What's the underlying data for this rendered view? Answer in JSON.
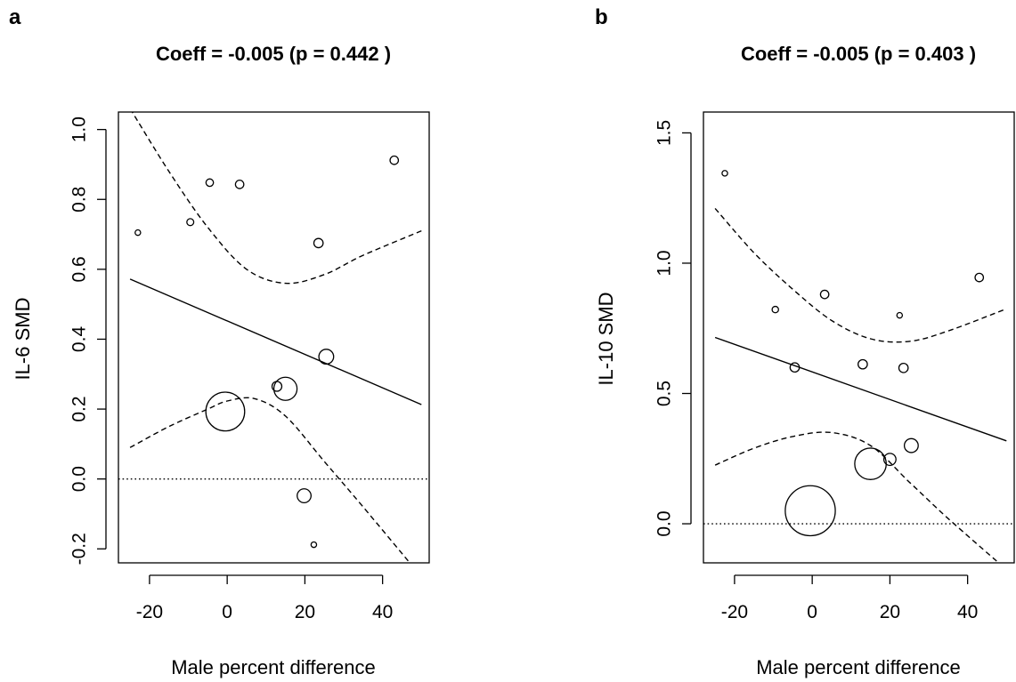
{
  "chart_data": [
    {
      "type": "scatter",
      "panel": "a",
      "title": "Coeff = -0.005 (p = 0.442 )",
      "xlabel": "Male percent difference",
      "ylabel": "IL-6 SMD",
      "xlim": [
        -28,
        52
      ],
      "ylim": [
        -0.24,
        1.05
      ],
      "xticks": [
        -20,
        0,
        20,
        40
      ],
      "yticks": [
        -0.2,
        0.0,
        0.2,
        0.4,
        0.6,
        0.8,
        1.0
      ],
      "ytick_labels": [
        "-0.2",
        "0.0",
        "0.2",
        "0.4",
        "0.6",
        "0.8",
        "1.0"
      ],
      "points": [
        {
          "x": -23,
          "y": 0.705,
          "weight": 1.2
        },
        {
          "x": -9.5,
          "y": 0.735,
          "weight": 1.5
        },
        {
          "x": -4.5,
          "y": 0.848,
          "weight": 1.6
        },
        {
          "x": 3.2,
          "y": 0.843,
          "weight": 1.8
        },
        {
          "x": 23.5,
          "y": 0.675,
          "weight": 2.0
        },
        {
          "x": 43,
          "y": 0.912,
          "weight": 1.8
        },
        {
          "x": 25.5,
          "y": 0.35,
          "weight": 3.2
        },
        {
          "x": 12.8,
          "y": 0.265,
          "weight": 2.1
        },
        {
          "x": 15,
          "y": 0.258,
          "weight": 5.0
        },
        {
          "x": -0.5,
          "y": 0.193,
          "weight": 8.4
        },
        {
          "x": 19.8,
          "y": -0.048,
          "weight": 3.0
        },
        {
          "x": 22.3,
          "y": -0.188,
          "weight": 1.2
        }
      ],
      "fit": {
        "x": [
          -25,
          50
        ],
        "y": [
          0.572,
          0.213
        ]
      },
      "ci_upper": [
        {
          "x": -25,
          "y": 1.06
        },
        {
          "x": -15,
          "y": 0.88
        },
        {
          "x": -5,
          "y": 0.72
        },
        {
          "x": 5,
          "y": 0.6
        },
        {
          "x": 15,
          "y": 0.56
        },
        {
          "x": 25,
          "y": 0.585
        },
        {
          "x": 35,
          "y": 0.64
        },
        {
          "x": 50,
          "y": 0.71
        }
      ],
      "ci_lower": [
        {
          "x": -25,
          "y": 0.09
        },
        {
          "x": -15,
          "y": 0.15
        },
        {
          "x": -5,
          "y": 0.2
        },
        {
          "x": 0,
          "y": 0.223
        },
        {
          "x": 7,
          "y": 0.23
        },
        {
          "x": 15,
          "y": 0.18
        },
        {
          "x": 25,
          "y": 0.05
        },
        {
          "x": 35,
          "y": -0.08
        },
        {
          "x": 47,
          "y": -0.24
        }
      ],
      "reference_line": 0.0
    },
    {
      "type": "scatter",
      "panel": "b",
      "title": "Coeff = -0.005 (p = 0.403 )",
      "xlabel": "Male percent difference",
      "ylabel": "IL-10 SMD",
      "xlim": [
        -28,
        52
      ],
      "ylim": [
        -0.15,
        1.58
      ],
      "xticks": [
        -20,
        0,
        20,
        40
      ],
      "yticks": [
        0.0,
        0.5,
        1.0,
        1.5
      ],
      "ytick_labels": [
        "0.0",
        "0.5",
        "1.0",
        "1.5"
      ],
      "points": [
        {
          "x": -22.5,
          "y": 1.345,
          "weight": 1.2
        },
        {
          "x": -9.5,
          "y": 0.822,
          "weight": 1.4
        },
        {
          "x": 3.2,
          "y": 0.88,
          "weight": 1.8
        },
        {
          "x": 22.5,
          "y": 0.8,
          "weight": 1.2
        },
        {
          "x": 43,
          "y": 0.945,
          "weight": 1.8
        },
        {
          "x": -4.5,
          "y": 0.6,
          "weight": 2.0
        },
        {
          "x": 13,
          "y": 0.612,
          "weight": 2.0
        },
        {
          "x": 23.5,
          "y": 0.598,
          "weight": 2.0
        },
        {
          "x": 25.5,
          "y": 0.3,
          "weight": 3.0
        },
        {
          "x": 20,
          "y": 0.247,
          "weight": 2.6
        },
        {
          "x": 15,
          "y": 0.23,
          "weight": 6.8
        },
        {
          "x": -0.5,
          "y": 0.05,
          "weight": 10.8
        }
      ],
      "fit": {
        "x": [
          -25,
          50
        ],
        "y": [
          0.715,
          0.318
        ]
      },
      "ci_upper": [
        {
          "x": -25,
          "y": 1.21
        },
        {
          "x": -15,
          "y": 1.04
        },
        {
          "x": -5,
          "y": 0.9
        },
        {
          "x": 5,
          "y": 0.78
        },
        {
          "x": 15,
          "y": 0.71
        },
        {
          "x": 25,
          "y": 0.7
        },
        {
          "x": 35,
          "y": 0.74
        },
        {
          "x": 50,
          "y": 0.825
        }
      ],
      "ci_lower": [
        {
          "x": -25,
          "y": 0.225
        },
        {
          "x": -15,
          "y": 0.29
        },
        {
          "x": -5,
          "y": 0.335
        },
        {
          "x": 5,
          "y": 0.35
        },
        {
          "x": 15,
          "y": 0.3
        },
        {
          "x": 25,
          "y": 0.16
        },
        {
          "x": 35,
          "y": 0.02
        },
        {
          "x": 48,
          "y": -0.15
        }
      ],
      "reference_line": 0.0
    }
  ]
}
